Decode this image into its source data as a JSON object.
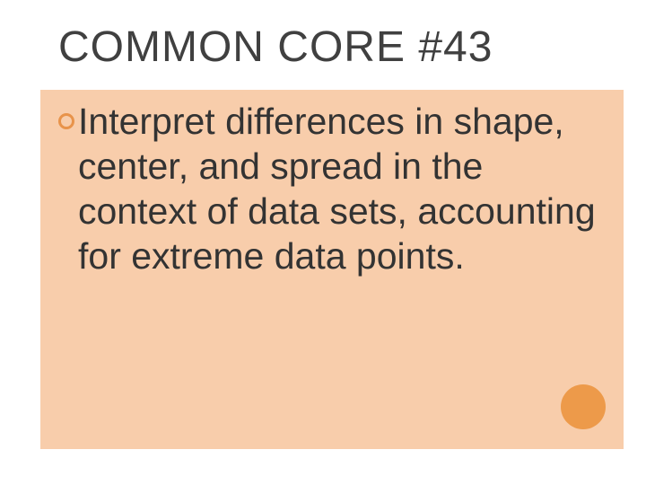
{
  "slide": {
    "title": "COMMON CORE #43",
    "bullet_text": "Interpret differences in shape, center, and spread in the context of data sets, accounting for extreme data points.",
    "background_color": "#ffffff",
    "content_bg_color": "#f8cdab",
    "title_color": "#404040",
    "text_color": "#333333",
    "bullet_color": "#e8934a",
    "accent_circle_color": "#ed9a4a",
    "title_fontsize": 48,
    "body_fontsize": 41
  }
}
